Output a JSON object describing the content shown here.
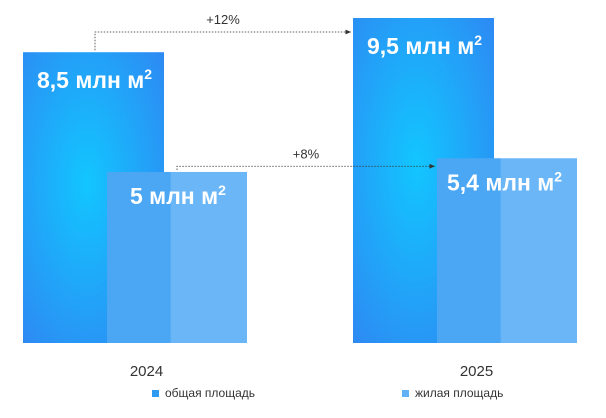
{
  "chart_data": {
    "type": "bar",
    "categories": [
      "2024",
      "2025"
    ],
    "series": [
      {
        "name": "общая площадь",
        "values": [
          8.5,
          9.5
        ],
        "labels": [
          "8,5 млн м",
          "9,5 млн м"
        ],
        "color": "#2f9bf0"
      },
      {
        "name": "жилая площадь",
        "values": [
          5,
          5.4
        ],
        "labels": [
          "5 млн м",
          "5,4 млн м"
        ],
        "color": "#62b1f6"
      }
    ],
    "unit_superscript": "2",
    "annotations": [
      {
        "series": 0,
        "label": "+12%"
      },
      {
        "series": 1,
        "label": "+8%"
      }
    ],
    "ylim": [
      0,
      9.5
    ],
    "grid": false,
    "legend": "bottom"
  }
}
